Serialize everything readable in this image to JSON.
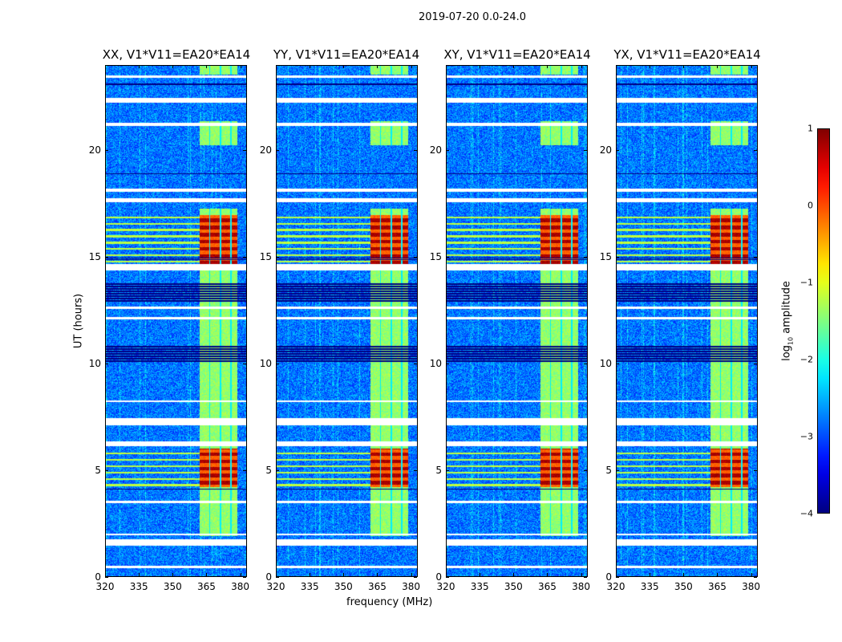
{
  "suptitle": "2019-07-20 0.0-24.0",
  "chart_data": {
    "type": "heatmap",
    "panels": [
      {
        "title": "XX, V1*V11=EA20*EA14",
        "pol": "XX"
      },
      {
        "title": "YY, V1*V11=EA20*EA14",
        "pol": "YY"
      },
      {
        "title": "XY, V1*V11=EA20*EA14",
        "pol": "XY"
      },
      {
        "title": "YX, V1*V11=EA20*EA14",
        "pol": "YX"
      }
    ],
    "xlabel": "frequency (MHz)",
    "ylabel": "UT (hours)",
    "xlim": [
      320,
      383
    ],
    "ylim": [
      0,
      24
    ],
    "xticks": [
      "320",
      "335",
      "350",
      "365",
      "380"
    ],
    "xtick_values": [
      320,
      335,
      350,
      365,
      380
    ],
    "yticks": [
      "0",
      "5",
      "10",
      "15",
      "20"
    ],
    "ytick_values": [
      0,
      5,
      10,
      15,
      20
    ],
    "colorbar": {
      "label": "log10 amplitude",
      "label_main": "log",
      "label_sub": "10",
      "label_rest": " amplitude",
      "range": [
        -4,
        1
      ],
      "ticks": [
        "1",
        "0",
        "−1",
        "−2",
        "−3",
        "−4"
      ],
      "tick_values": [
        1,
        0,
        -1,
        -2,
        -3,
        -4
      ],
      "colormap": "jet"
    },
    "background_level": -2.8,
    "rfi_band_mhz": [
      362,
      379
    ],
    "rfi_active_hours": [
      [
        1.9,
        17.3
      ],
      [
        20.3,
        21.4
      ],
      [
        23.6,
        24
      ]
    ],
    "rfi_level": -1.4,
    "strong_rfi_hours": [
      [
        4.2,
        6.0
      ],
      [
        14.6,
        17.0
      ]
    ],
    "strong_rfi_level": 0.6,
    "flagged_hours": [
      [
        0.4,
        0.5
      ],
      [
        1.45,
        1.75
      ],
      [
        1.95,
        2.0
      ],
      [
        3.45,
        3.55
      ],
      [
        6.15,
        6.35
      ],
      [
        7.1,
        7.45
      ],
      [
        8.2,
        8.3
      ],
      [
        12.1,
        12.2
      ],
      [
        12.6,
        12.7
      ],
      [
        14.4,
        14.7
      ],
      [
        17.6,
        17.8
      ],
      [
        18.1,
        18.25
      ],
      [
        21.2,
        21.35
      ],
      [
        22.3,
        22.5
      ],
      [
        23.45,
        23.55
      ]
    ],
    "dropout_hours": [
      [
        4.1,
        4.15
      ],
      [
        10.1,
        10.9
      ],
      [
        12.9,
        13.8
      ],
      [
        14.9,
        15.0
      ],
      [
        18.9,
        18.95
      ],
      [
        23.1,
        23.2
      ]
    ]
  }
}
